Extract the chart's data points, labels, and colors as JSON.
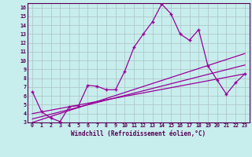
{
  "title": "",
  "xlabel": "Windchill (Refroidissement éolien,°C)",
  "ylabel": "",
  "xlim": [
    -0.5,
    23.5
  ],
  "ylim": [
    3,
    16.5
  ],
  "xticks": [
    0,
    1,
    2,
    3,
    4,
    5,
    6,
    7,
    8,
    9,
    10,
    11,
    12,
    13,
    14,
    15,
    16,
    17,
    18,
    19,
    20,
    21,
    22,
    23
  ],
  "yticks": [
    3,
    4,
    5,
    6,
    7,
    8,
    9,
    10,
    11,
    12,
    13,
    14,
    15,
    16
  ],
  "bg_color": "#c8eded",
  "line_color": "#990099",
  "grid_color": "#b0c8c8",
  "main_x": [
    0,
    1,
    2,
    3,
    4,
    5,
    6,
    7,
    8,
    9,
    10,
    11,
    12,
    13,
    14,
    15,
    16,
    17,
    18,
    19,
    20,
    21,
    22,
    23
  ],
  "main_y": [
    6.5,
    4.2,
    3.5,
    3.1,
    4.8,
    4.9,
    7.2,
    7.1,
    6.7,
    6.7,
    8.8,
    11.5,
    13.0,
    14.4,
    16.4,
    15.3,
    13.0,
    12.3,
    13.5,
    9.4,
    7.8,
    6.2,
    7.5,
    8.5
  ],
  "line1_x": [
    0,
    23
  ],
  "line1_y": [
    4.0,
    8.5
  ],
  "line2_x": [
    0,
    23
  ],
  "line2_y": [
    3.4,
    9.5
  ],
  "line3_x": [
    0,
    23
  ],
  "line3_y": [
    3.0,
    10.8
  ]
}
